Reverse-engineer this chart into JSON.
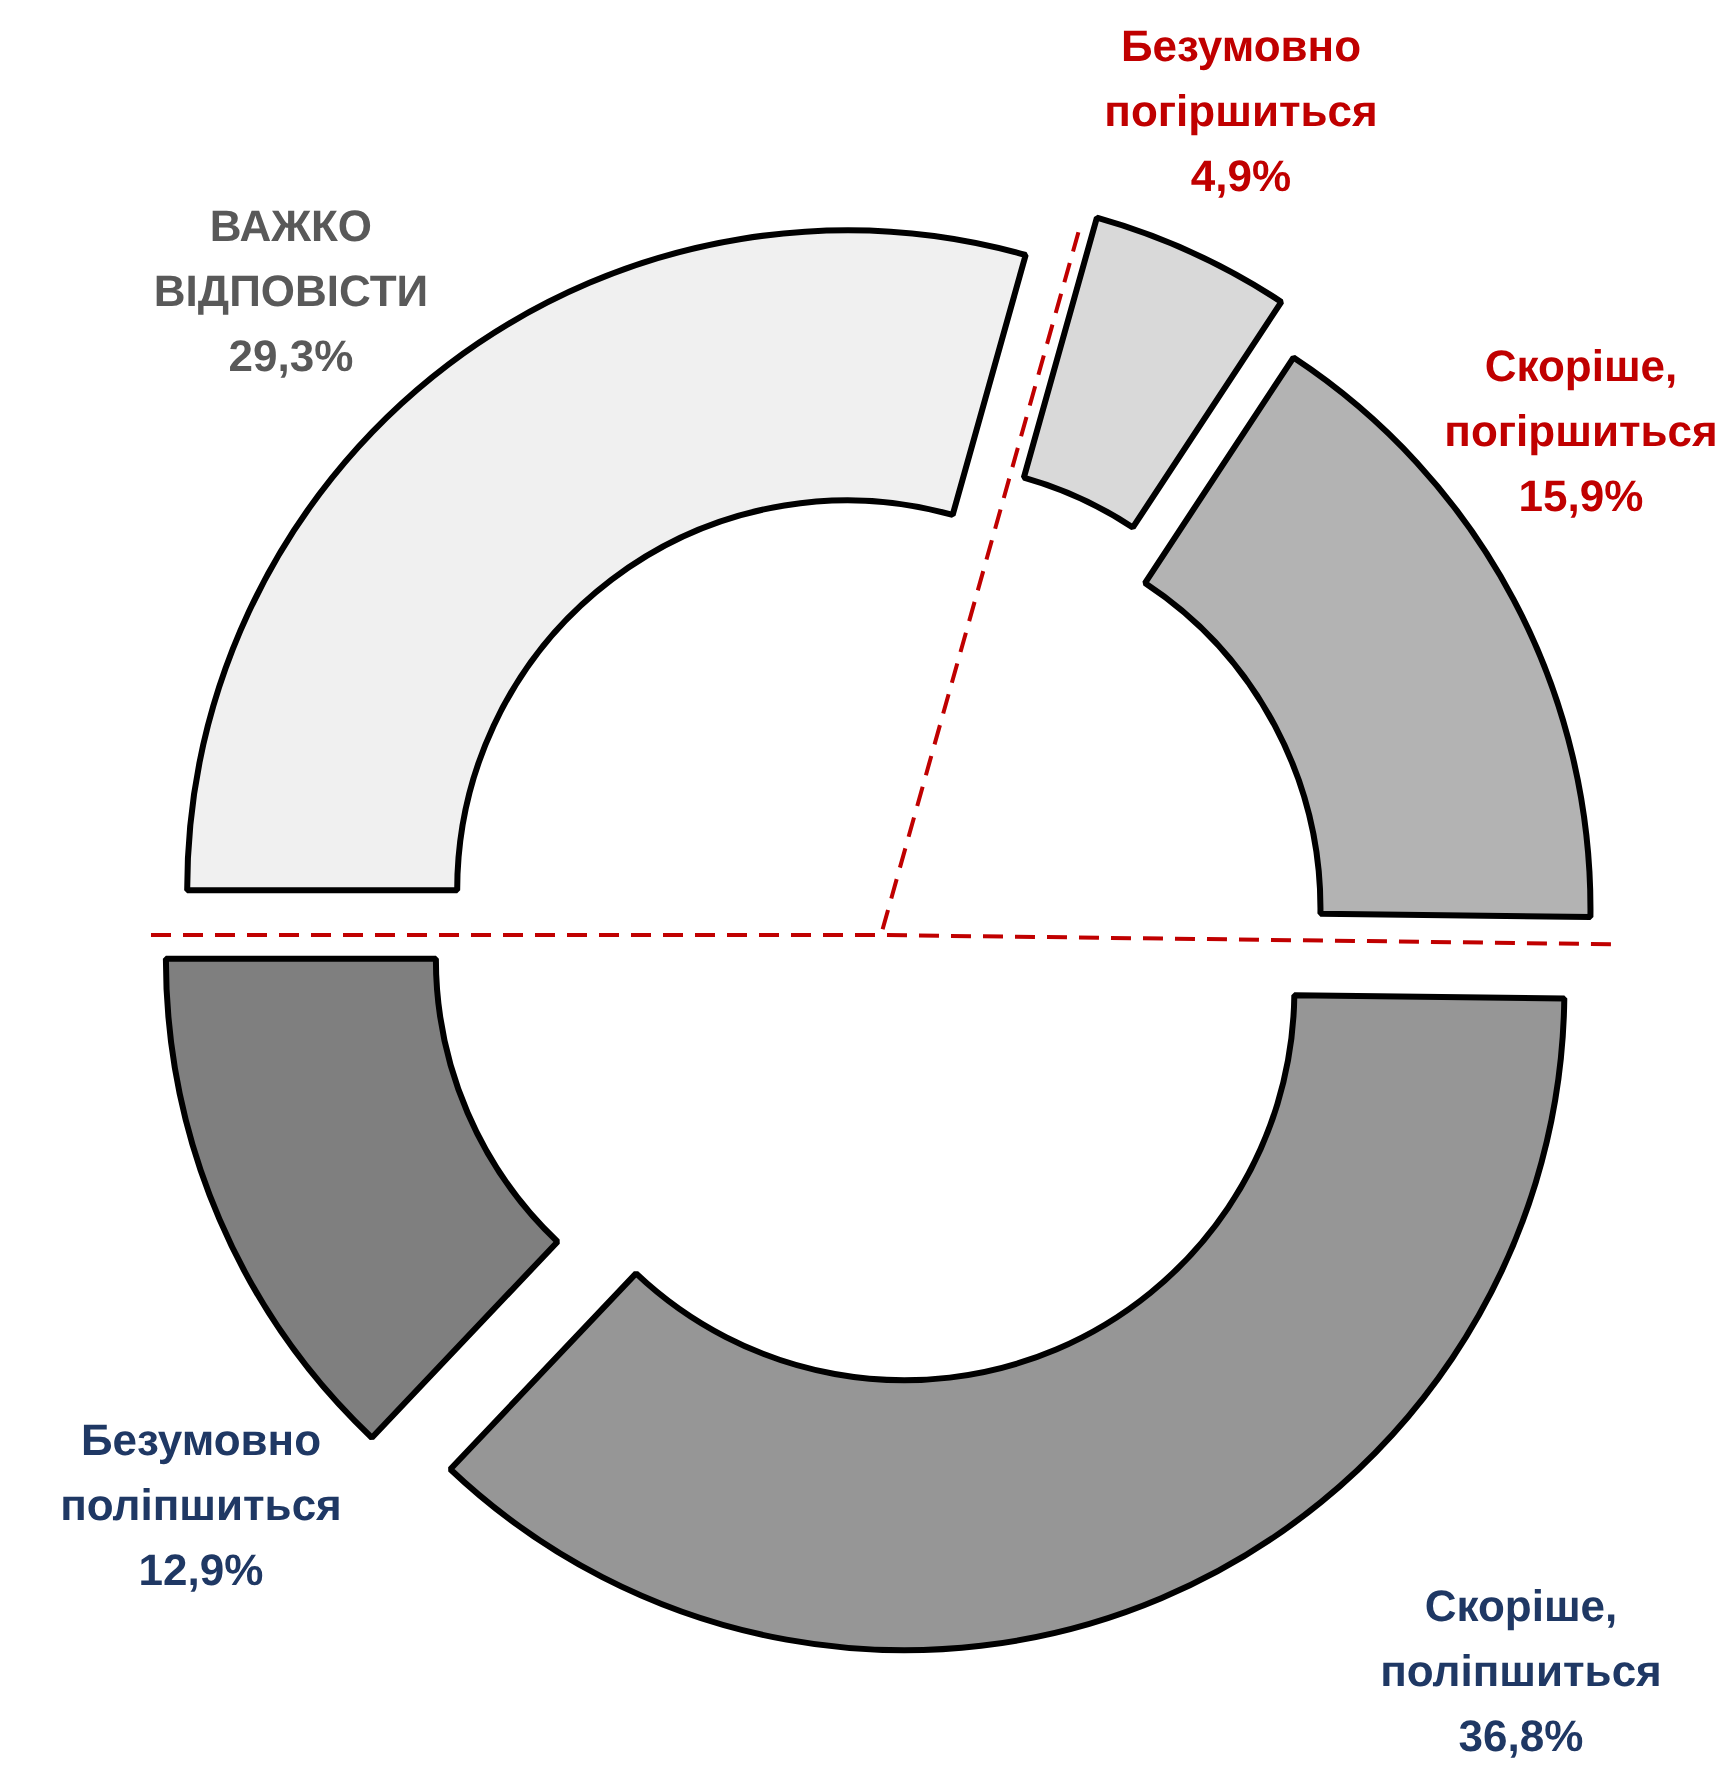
{
  "chart_data": {
    "type": "donut",
    "categories": [
      "ВАЖКО ВІДПОВІСТИ",
      "Безумовно погіршиться",
      "Скоріше, погіршиться",
      "Скоріше, поліпшиться",
      "Безумовно поліпшиться"
    ],
    "values": [
      29.3,
      4.9,
      15.9,
      36.8,
      12.9
    ],
    "colors": [
      "#f0f0f0",
      "#d9d9d9",
      "#b3b3b3",
      "#969696",
      "#7f7f7f"
    ],
    "value_labels": [
      "29,3%",
      "4,9%",
      "15,9%",
      "36,8%",
      "12,9%"
    ]
  }
}
